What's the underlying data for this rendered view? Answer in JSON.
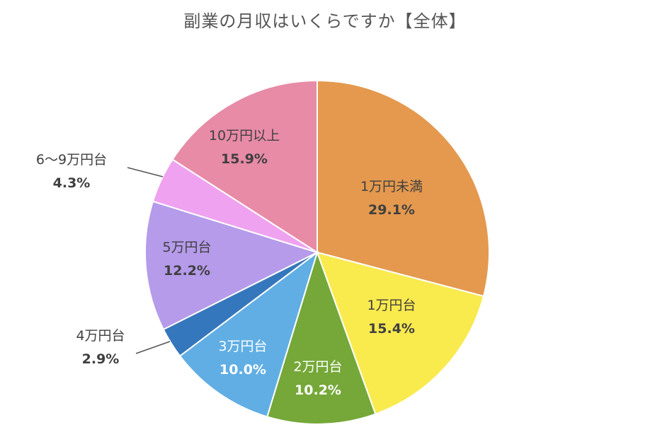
{
  "chart_data": {
    "type": "pie",
    "title": "副業の月収はいくらですか【全体】",
    "start_angle_deg": 0,
    "direction": "clockwise",
    "slices": [
      {
        "label": "1万円未満",
        "value": 29.1,
        "display": "29.1%",
        "color": "#e4994e"
      },
      {
        "label": "1万円台",
        "value": 15.4,
        "display": "15.4%",
        "color": "#f9ea4e"
      },
      {
        "label": "2万円台",
        "value": 10.2,
        "display": "10.2%",
        "color": "#75a838",
        "text_color": "#ffffff"
      },
      {
        "label": "3万円台",
        "value": 10.0,
        "display": "10.0%",
        "color": "#60aee4",
        "text_color": "#ffffff"
      },
      {
        "label": "4万円台",
        "value": 2.9,
        "display": "2.9%",
        "color": "#3577bc",
        "label_outside": true
      },
      {
        "label": "5万円台",
        "value": 12.2,
        "display": "12.2%",
        "color": "#b59bea"
      },
      {
        "label": "6～9万円台",
        "value": 4.3,
        "display": "4.3%",
        "color": "#efa2ef",
        "label_outside": true
      },
      {
        "label": "10万円以上",
        "value": 15.9,
        "display": "15.9%",
        "color": "#e78ba7"
      }
    ]
  }
}
